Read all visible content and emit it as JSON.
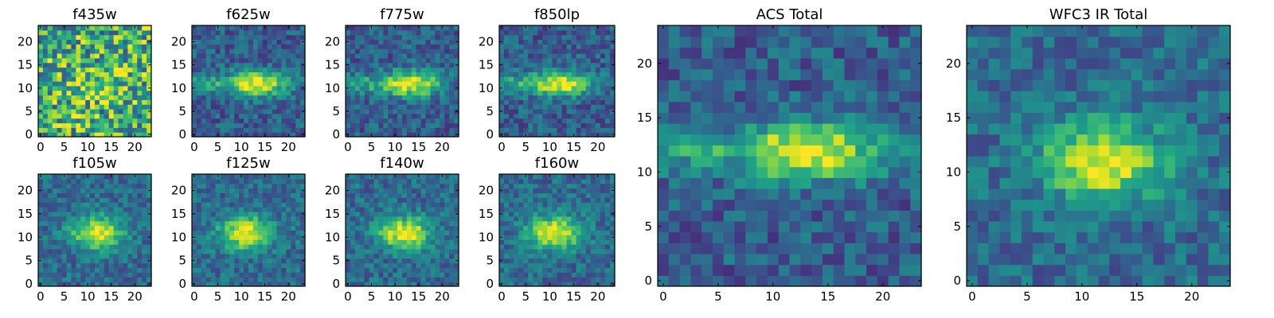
{
  "figure": {
    "description_colormap": "viridis"
  },
  "chart_data": [
    {
      "type": "heatmap",
      "title": "f435w",
      "xticks": [
        0,
        5,
        10,
        15,
        20
      ],
      "yticks": [
        0,
        5,
        10,
        15,
        20
      ],
      "grid": 24,
      "peak": [
        12,
        11
      ],
      "pattern": "noise"
    },
    {
      "type": "heatmap",
      "title": "f625w",
      "xticks": [
        0,
        5,
        10,
        15,
        20
      ],
      "yticks": [
        0,
        5,
        10,
        15,
        20
      ],
      "grid": 24,
      "peak": [
        13,
        11
      ],
      "pattern": "elongated"
    },
    {
      "type": "heatmap",
      "title": "f775w",
      "xticks": [
        0,
        5,
        10,
        15,
        20
      ],
      "yticks": [
        0,
        5,
        10,
        15,
        20
      ],
      "grid": 24,
      "peak": [
        13,
        11
      ],
      "pattern": "elongated"
    },
    {
      "type": "heatmap",
      "title": "f850lp",
      "xticks": [
        0,
        5,
        10,
        15,
        20
      ],
      "yticks": [
        0,
        5,
        10,
        15,
        20
      ],
      "grid": 24,
      "peak": [
        12,
        11
      ],
      "pattern": "elongated"
    },
    {
      "type": "heatmap",
      "title": "f105w",
      "xticks": [
        0,
        5,
        10,
        15,
        20
      ],
      "yticks": [
        0,
        5,
        10,
        15,
        20
      ],
      "grid": 24,
      "peak": [
        12,
        11
      ],
      "pattern": "blob"
    },
    {
      "type": "heatmap",
      "title": "f125w",
      "xticks": [
        0,
        5,
        10,
        15,
        20
      ],
      "yticks": [
        0,
        5,
        10,
        15,
        20
      ],
      "grid": 24,
      "peak": [
        11,
        11
      ],
      "pattern": "blob"
    },
    {
      "type": "heatmap",
      "title": "f140w",
      "xticks": [
        0,
        5,
        10,
        15,
        20
      ],
      "yticks": [
        0,
        5,
        10,
        15,
        20
      ],
      "grid": 24,
      "peak": [
        12,
        11
      ],
      "pattern": "blob"
    },
    {
      "type": "heatmap",
      "title": "f160w",
      "xticks": [
        0,
        5,
        10,
        15,
        20
      ],
      "yticks": [
        0,
        5,
        10,
        15,
        20
      ],
      "grid": 24,
      "peak": [
        11,
        11
      ],
      "pattern": "blob"
    },
    {
      "type": "heatmap",
      "title": "ACS Total",
      "xticks": [
        0,
        5,
        10,
        15,
        20
      ],
      "yticks": [
        0,
        5,
        10,
        15,
        20
      ],
      "grid": 24,
      "peak": [
        13,
        12
      ],
      "pattern": "elongated"
    },
    {
      "type": "heatmap",
      "title": "WFC3 IR Total",
      "xticks": [
        0,
        5,
        10,
        15,
        20
      ],
      "yticks": [
        0,
        5,
        10,
        15,
        20
      ],
      "grid": 24,
      "peak": [
        12,
        11
      ],
      "pattern": "blob"
    }
  ]
}
